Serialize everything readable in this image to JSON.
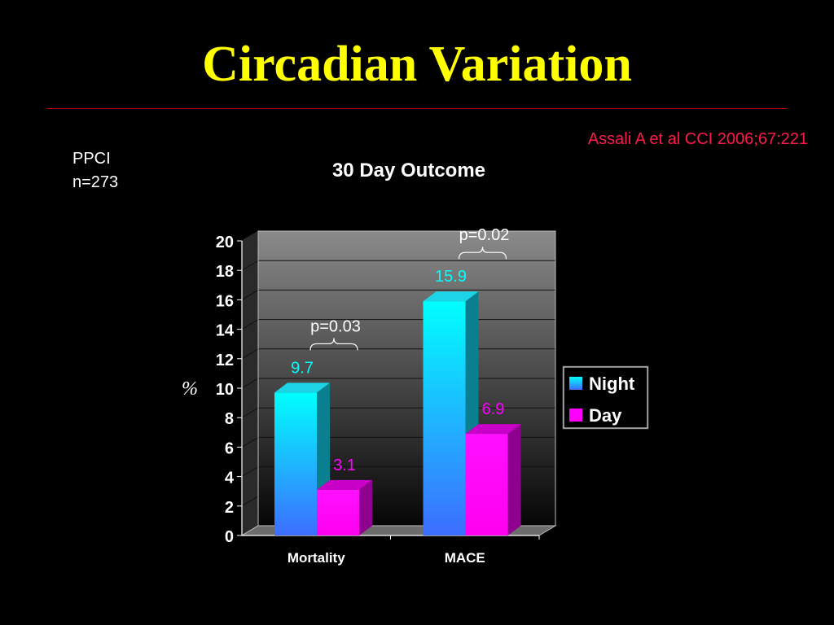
{
  "slide": {
    "title": "Circadian Variation",
    "citation": "Assali A et al CCI 2006;67:221",
    "study": {
      "procedure": "PPCI",
      "sample": "n=273"
    }
  },
  "colors": {
    "background": "#000000",
    "title": "#ffff00",
    "rule": "#cc0000",
    "citation": "#ff1a4a",
    "night": "#00ffff",
    "day": "#ff00ff"
  },
  "chart_data": {
    "type": "bar",
    "title": "30 Day Outcome",
    "xlabel": "",
    "ylabel": "%",
    "ylim": [
      0,
      20
    ],
    "yticks": [
      0,
      2,
      4,
      6,
      8,
      10,
      12,
      14,
      16,
      18,
      20
    ],
    "grid": true,
    "legend": "right",
    "categories": [
      "Mortality",
      "MACE"
    ],
    "series": [
      {
        "name": "Night",
        "values": [
          9.7,
          15.9
        ],
        "labels": [
          "9.7",
          "15.9"
        ],
        "color": "#00ffff"
      },
      {
        "name": "Day",
        "values": [
          3.1,
          6.9
        ],
        "labels": [
          "3.1",
          "6.9"
        ],
        "color": "#ff00ff"
      }
    ],
    "annotations": [
      {
        "category": "Mortality",
        "text": "p=0.03"
      },
      {
        "category": "MACE",
        "text": "p=0.02"
      }
    ]
  }
}
